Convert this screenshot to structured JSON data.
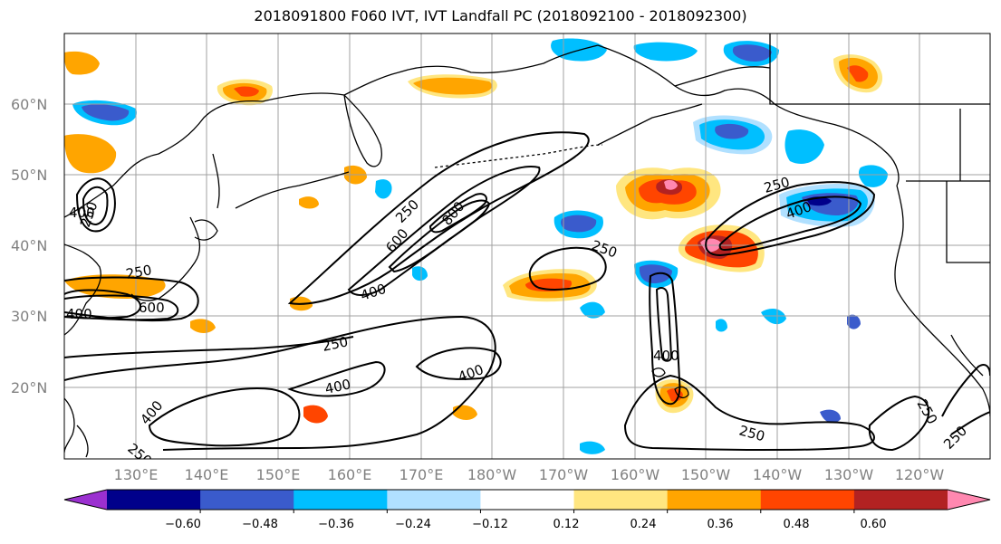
{
  "title": "2018091800 F060 IVT, IVT Landfall PC (2018092100 - 2018092300)",
  "latitude_labels": [
    "60°N",
    "50°N",
    "40°N",
    "30°N",
    "20°N"
  ],
  "longitude_labels": [
    "130°E",
    "140°E",
    "150°E",
    "160°E",
    "170°E",
    "180°W",
    "170°W",
    "160°W",
    "150°W",
    "140°W",
    "130°W",
    "120°W"
  ],
  "contour_labels": [
    "250",
    "400",
    "600",
    "800",
    "250",
    "400",
    "600",
    "250",
    "400",
    "250",
    "400",
    "400",
    "250",
    "250",
    "400",
    "250",
    "250",
    "400",
    "400",
    "250",
    "250"
  ],
  "colorbar": {
    "tick_labels": [
      "−0.60",
      "−0.48",
      "−0.36",
      "−0.24",
      "−0.12",
      "0.12",
      "0.24",
      "0.36",
      "0.48",
      "0.60"
    ],
    "colors": [
      "#9b30d0",
      "#00008b",
      "#3a5bcc",
      "#00bfff",
      "#b0e0ff",
      "#ffffff",
      "#ffe680",
      "#ffa500",
      "#ff4500",
      "#b22222",
      "#ff88b0"
    ]
  },
  "colors": {
    "gridline": "#a0a0a0",
    "coastline": "#000000",
    "axis_label": "#808080"
  }
}
